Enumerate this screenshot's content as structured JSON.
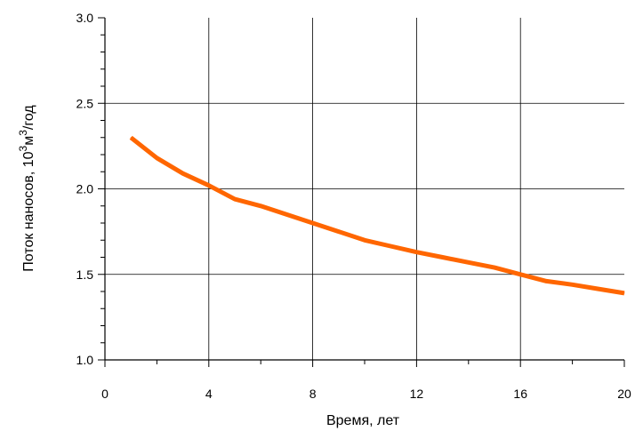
{
  "chart_data": {
    "type": "line",
    "xlabel": "Время, лет",
    "ylabel_parts": [
      "Поток наносов, 10",
      "3",
      "м",
      "3",
      "/год"
    ],
    "xlim": [
      0,
      20
    ],
    "ylim": [
      1.0,
      3.0
    ],
    "x_ticks": [
      0,
      4,
      8,
      12,
      16,
      20
    ],
    "y_ticks": [
      1.0,
      1.5,
      2.0,
      2.5,
      3.0
    ],
    "x_tick_labels": [
      "0",
      "4",
      "8",
      "12",
      "16",
      "20"
    ],
    "y_tick_labels": [
      "1.0",
      "1.5",
      "2.0",
      "2.5",
      "3.0"
    ],
    "x_minor_step": 2,
    "y_minor_step": 0.1,
    "grid": true,
    "series": [
      {
        "color": "#ff6600",
        "x": [
          1,
          2,
          3,
          4,
          5,
          6,
          7,
          8,
          9,
          10,
          11,
          12,
          13,
          14,
          15,
          16,
          17,
          18,
          19,
          20
        ],
        "y": [
          2.3,
          2.18,
          2.09,
          2.02,
          1.94,
          1.9,
          1.85,
          1.8,
          1.75,
          1.7,
          1.665,
          1.63,
          1.6,
          1.57,
          1.54,
          1.5,
          1.46,
          1.44,
          1.415,
          1.39
        ]
      }
    ]
  }
}
